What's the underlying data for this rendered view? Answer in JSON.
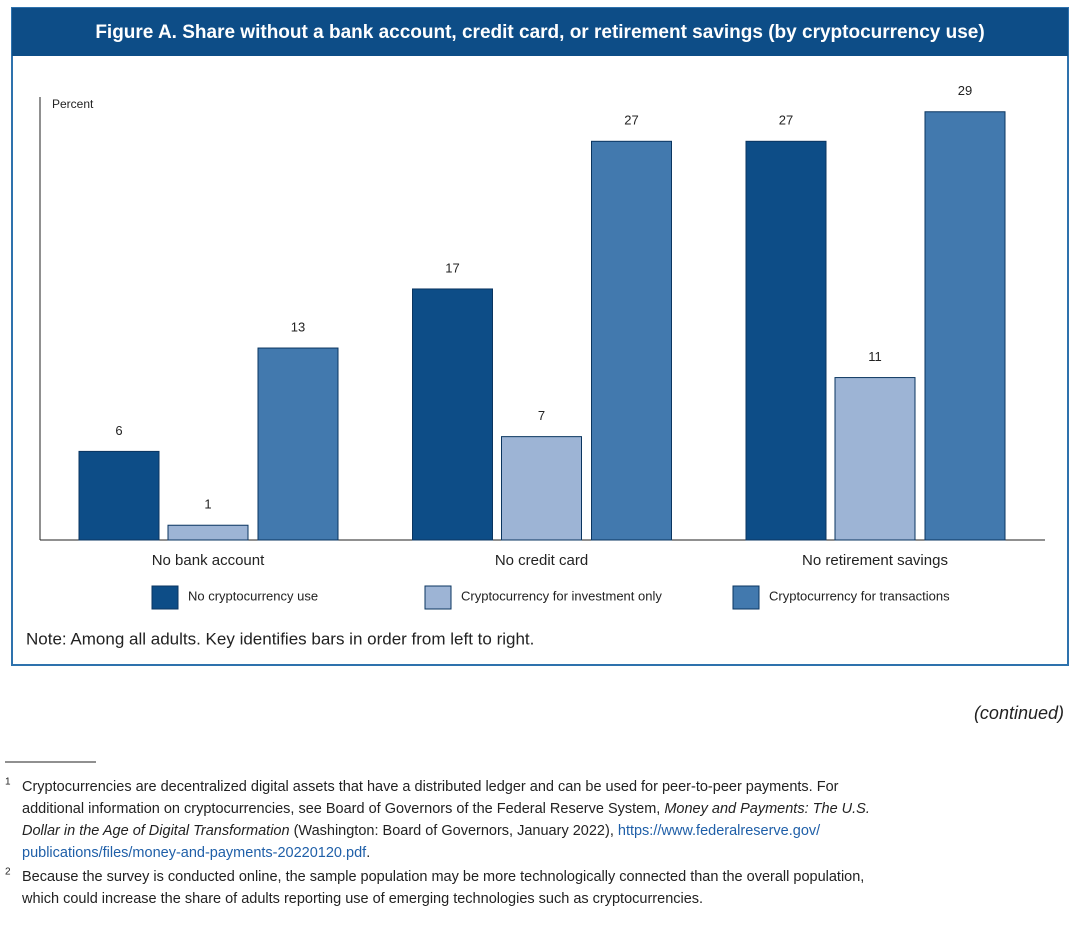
{
  "chart_data": {
    "type": "bar",
    "title": "Figure A. Share without a bank account, credit card, or retirement savings (by cryptocurrency use)",
    "y_label": "Percent",
    "categories": [
      "No bank account",
      "No credit card",
      "No retirement savings"
    ],
    "series": [
      {
        "name": "No cryptocurrency use",
        "color": "#0d4d87",
        "values": [
          6,
          17,
          27
        ]
      },
      {
        "name": "Cryptocurrency for investment only",
        "color": "#9db4d5",
        "values": [
          1,
          7,
          11
        ]
      },
      {
        "name": "Cryptocurrency for transactions",
        "color": "#4279ae",
        "values": [
          13,
          27,
          29
        ]
      }
    ],
    "ylim": [
      0,
      30
    ],
    "grid": false
  },
  "note": "Note:  Among all adults. Key identifies bars in order from left to right.",
  "continued": "(continued)",
  "footnotes": [
    {
      "marker": "1",
      "lines": [
        [
          {
            "text": "Cryptocurrencies are decentralized digital assets that have a distributed ledger and can be used for peer-to-peer payments. For",
            "style": "normal"
          }
        ],
        [
          {
            "text": "additional information on cryptocurrencies, see Board of Governors of the Federal Reserve System, ",
            "style": "normal"
          },
          {
            "text": "Money and Payments: The U.S.",
            "style": "italic"
          }
        ],
        [
          {
            "text": "Dollar in the Age of Digital Transformation",
            "style": "italic"
          },
          {
            "text": " (Washington: Board of Governors, January 2022), ",
            "style": "normal"
          },
          {
            "text": "https://www.federalreserve.gov/",
            "style": "link"
          }
        ],
        [
          {
            "text": "publications/files/money-and-payments-20220120.pdf",
            "style": "link"
          },
          {
            "text": ".",
            "style": "normal"
          }
        ]
      ]
    },
    {
      "marker": "2",
      "lines": [
        [
          {
            "text": "Because the survey is conducted online, the sample population may be more technologically connected than the overall population,",
            "style": "normal"
          }
        ],
        [
          {
            "text": "which could increase the share of adults reporting use of emerging technologies such as cryptocurrencies.",
            "style": "normal"
          }
        ]
      ]
    }
  ]
}
